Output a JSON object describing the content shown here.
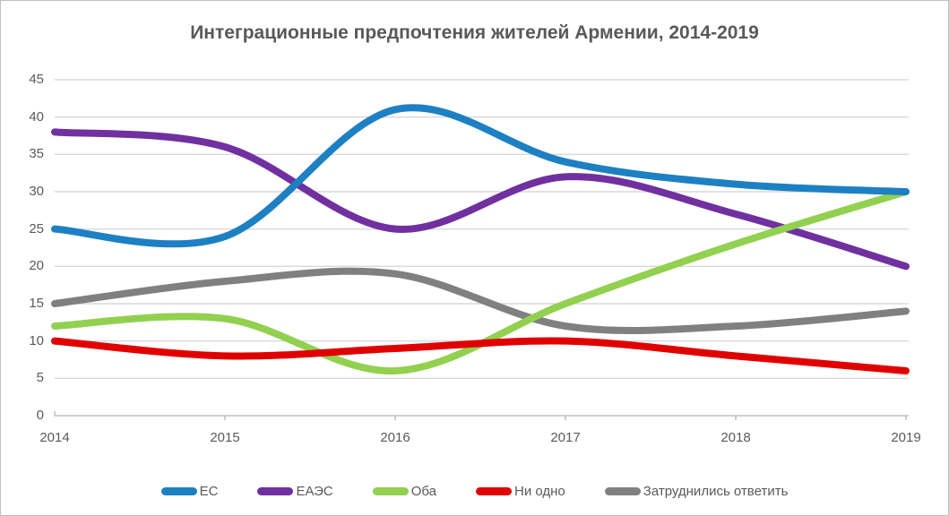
{
  "chart_data": {
    "type": "line",
    "title": "Интеграционные предпочтения жителей Армении, 2014-2019",
    "categories": [
      "2014",
      "2015",
      "2016",
      "2017",
      "2018",
      "2019"
    ],
    "series": [
      {
        "name": "ЕС",
        "color": "#1d80c3",
        "values": [
          25,
          24,
          41,
          34,
          31,
          30
        ]
      },
      {
        "name": "ЕАЭС",
        "color": "#7030a0",
        "values": [
          38,
          36,
          25,
          32,
          27,
          20
        ]
      },
      {
        "name": "Оба",
        "color": "#92d050",
        "values": [
          12,
          13,
          6,
          15,
          23,
          30
        ]
      },
      {
        "name": "Ни одно",
        "color": "#e00000",
        "values": [
          10,
          8,
          9,
          10,
          8,
          6
        ]
      },
      {
        "name": "Затруднились ответить",
        "color": "#808080",
        "values": [
          15,
          18,
          19,
          12,
          12,
          14
        ]
      }
    ],
    "xlabel": "",
    "ylabel": "",
    "ylim": [
      0,
      45
    ],
    "ytick_step": 5,
    "grid": true,
    "line_style": "smooth",
    "legend_position": "bottom"
  },
  "style": {
    "title_color": "#595959",
    "axis_text_color": "#595959",
    "gridline_color": "#d9d9d9",
    "axis_line_color": "#bfbfbf",
    "background": "#ffffff"
  }
}
